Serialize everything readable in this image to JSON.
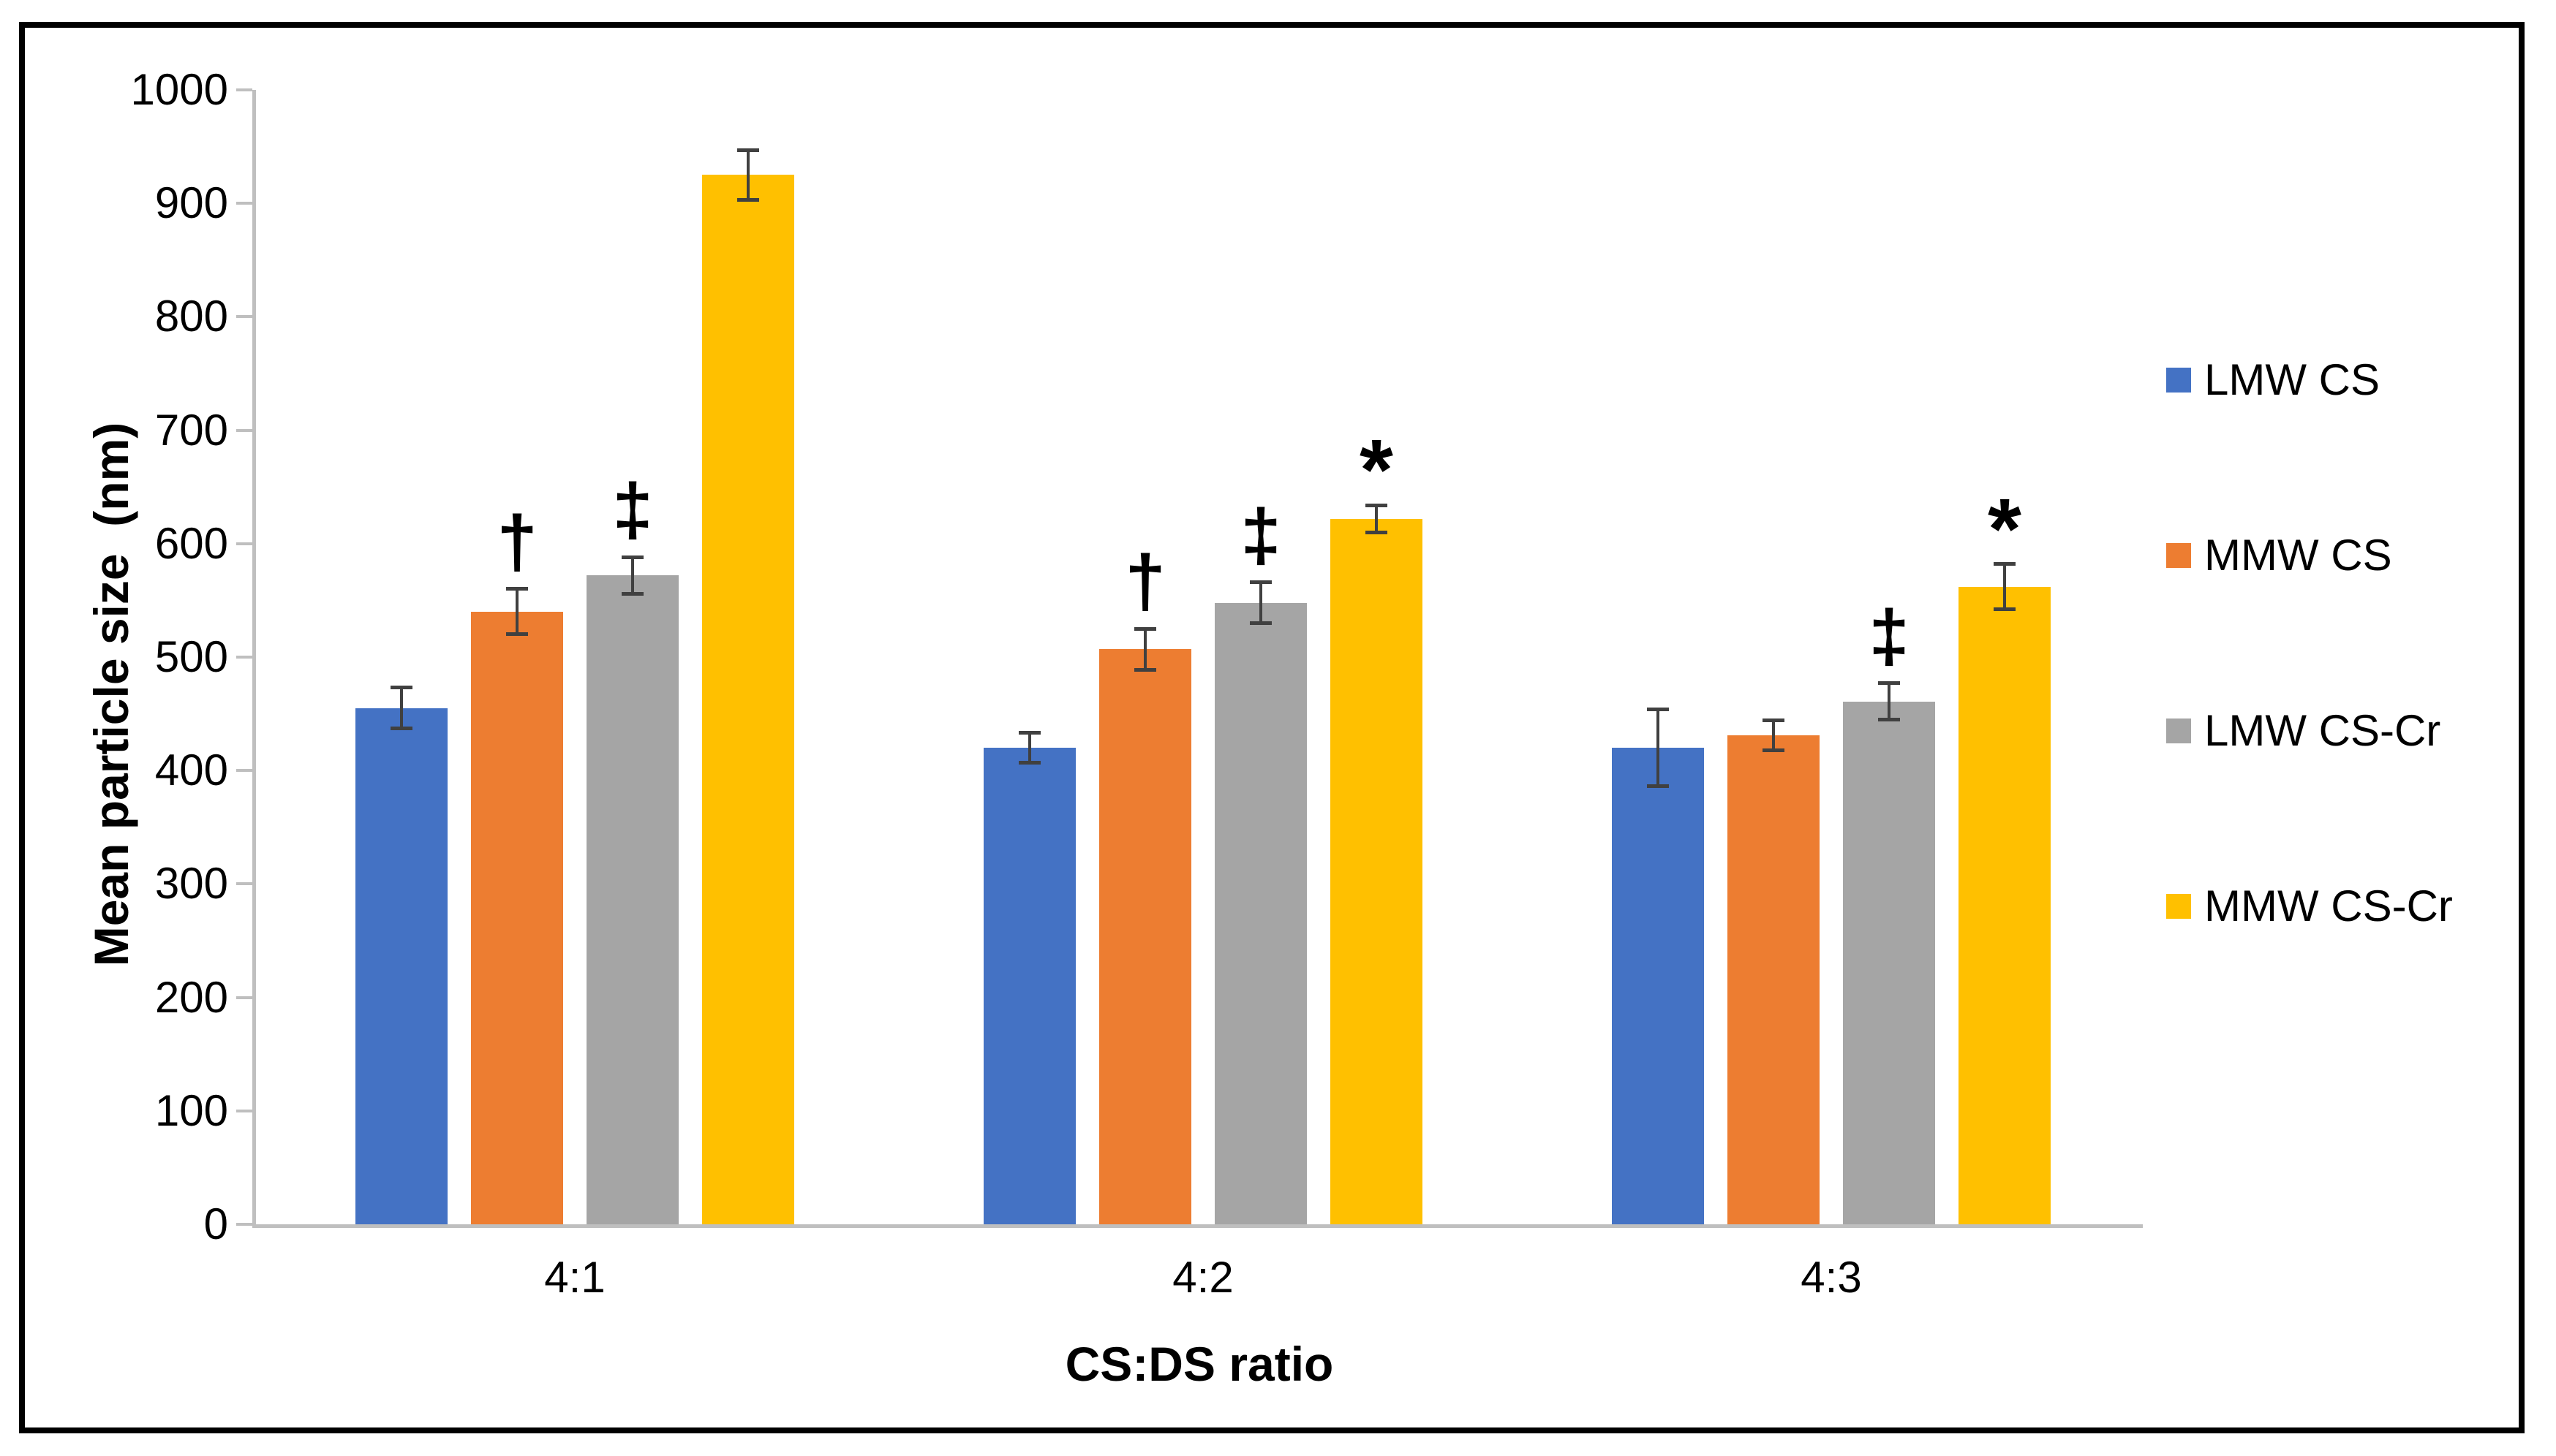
{
  "figure": {
    "background_color": "#ffffff",
    "border_color": "#000000",
    "axis_color": "#BFBFBF",
    "error_bar_color": "#404040",
    "text_color": "#000000"
  },
  "chart_data": {
    "type": "bar",
    "title": "",
    "xlabel": "CS:DS ratio",
    "ylabel": "Mean particle size  (nm)",
    "ylim": [
      0,
      1000
    ],
    "ytick_step": 100,
    "ytick_labels": [
      "0",
      "100",
      "200",
      "300",
      "400",
      "500",
      "600",
      "700",
      "800",
      "900",
      "1000"
    ],
    "grid": false,
    "legend_position": "right",
    "categories": [
      "4:1",
      "4:2",
      "4:3"
    ],
    "series": [
      {
        "name": "LMW CS",
        "color": "#4472C4",
        "values": [
          455,
          420,
          420
        ],
        "errors": [
          18,
          13,
          34
        ]
      },
      {
        "name": "MMW CS",
        "color": "#ED7D31",
        "values": [
          540,
          507,
          431
        ],
        "errors": [
          20,
          18,
          13
        ]
      },
      {
        "name": "LMW CS-Cr",
        "color": "#A5A5A5",
        "values": [
          572,
          548,
          461
        ],
        "errors": [
          16,
          18,
          16
        ]
      },
      {
        "name": "MMW CS-Cr",
        "color": "#FFC000",
        "values": [
          925,
          622,
          562
        ],
        "errors": [
          22,
          12,
          20
        ]
      }
    ],
    "annotations": [
      {
        "category": "4:1",
        "series": "MMW CS",
        "symbol": "†"
      },
      {
        "category": "4:1",
        "series": "LMW CS-Cr",
        "symbol": "‡"
      },
      {
        "category": "4:2",
        "series": "MMW CS",
        "symbol": "†"
      },
      {
        "category": "4:2",
        "series": "LMW CS-Cr",
        "symbol": "‡"
      },
      {
        "category": "4:2",
        "series": "MMW CS-Cr",
        "symbol": "*"
      },
      {
        "category": "4:3",
        "series": "LMW CS-Cr",
        "symbol": "‡"
      },
      {
        "category": "4:3",
        "series": "MMW CS-Cr",
        "symbol": "*"
      }
    ]
  }
}
